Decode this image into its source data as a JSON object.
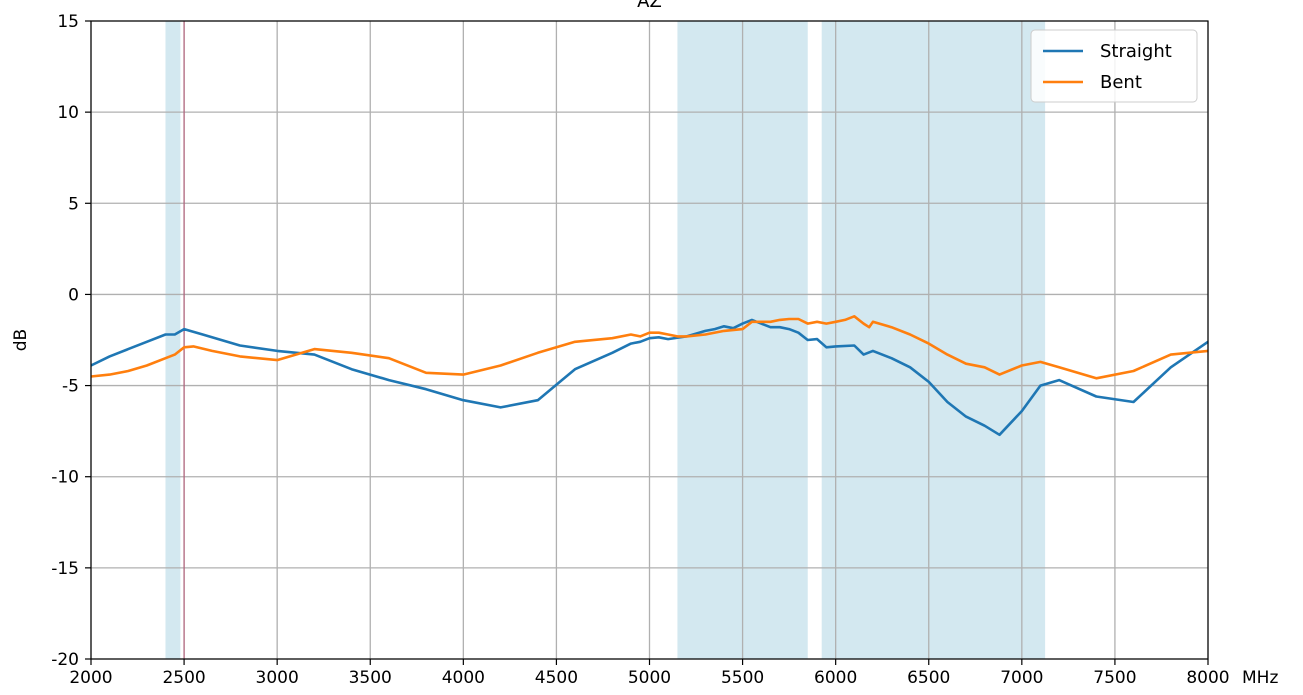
{
  "chart_data": {
    "type": "line",
    "title": "AZ",
    "xlabel": "",
    "ylabel": "dB",
    "x_unit": "MHz",
    "xlim": [
      2000,
      8000
    ],
    "ylim": [
      -20,
      15
    ],
    "xticks": [
      2000,
      2500,
      3000,
      3500,
      4000,
      4500,
      5000,
      5500,
      6000,
      6500,
      7000,
      7500,
      8000
    ],
    "yticks": [
      15,
      10,
      5,
      0,
      -5,
      -10,
      -15,
      -20
    ],
    "grid": true,
    "legend_position": "top-right",
    "shaded_bands": [
      [
        2400,
        2480
      ],
      [
        5150,
        5850
      ],
      [
        5925,
        7125
      ]
    ],
    "vertical_marker": 2500,
    "colors": {
      "Straight": "#1f77b4",
      "Bent": "#ff7f0e",
      "band": "#d3e8f0",
      "marker": "#b05070"
    },
    "series": [
      {
        "name": "Straight",
        "color": "#1f77b4",
        "x": [
          2000,
          2100,
          2200,
          2300,
          2400,
          2450,
          2500,
          2600,
          2800,
          3000,
          3200,
          3400,
          3600,
          3800,
          4000,
          4200,
          4400,
          4600,
          4800,
          4900,
          4950,
          5000,
          5050,
          5100,
          5200,
          5300,
          5350,
          5400,
          5450,
          5500,
          5550,
          5600,
          5650,
          5700,
          5750,
          5800,
          5850,
          5900,
          5950,
          6000,
          6100,
          6150,
          6200,
          6300,
          6400,
          6500,
          6600,
          6700,
          6800,
          6880,
          7000,
          7100,
          7200,
          7400,
          7600,
          7800,
          8000
        ],
        "y": [
          -3.9,
          -3.4,
          -3.0,
          -2.6,
          -2.2,
          -2.2,
          -1.9,
          -2.2,
          -2.8,
          -3.1,
          -3.3,
          -4.1,
          -4.7,
          -5.2,
          -5.8,
          -6.2,
          -5.8,
          -4.1,
          -3.2,
          -2.7,
          -2.6,
          -2.4,
          -2.35,
          -2.45,
          -2.3,
          -2.0,
          -1.9,
          -1.75,
          -1.85,
          -1.6,
          -1.4,
          -1.6,
          -1.8,
          -1.8,
          -1.9,
          -2.1,
          -2.5,
          -2.45,
          -2.9,
          -2.85,
          -2.8,
          -3.3,
          -3.1,
          -3.5,
          -4.0,
          -4.8,
          -5.9,
          -6.7,
          -7.2,
          -7.7,
          -6.4,
          -5.0,
          -4.7,
          -5.6,
          -5.9,
          -4.0,
          -2.6
        ]
      },
      {
        "name": "Bent",
        "color": "#ff7f0e",
        "x": [
          2000,
          2100,
          2200,
          2300,
          2400,
          2450,
          2500,
          2550,
          2650,
          2800,
          3000,
          3200,
          3400,
          3600,
          3800,
          4000,
          4200,
          4400,
          4600,
          4800,
          4900,
          4950,
          5000,
          5050,
          5100,
          5150,
          5200,
          5300,
          5400,
          5500,
          5550,
          5600,
          5650,
          5700,
          5750,
          5800,
          5850,
          5900,
          5950,
          6000,
          6050,
          6100,
          6150,
          6180,
          6200,
          6300,
          6400,
          6500,
          6600,
          6700,
          6800,
          6880,
          7000,
          7100,
          7200,
          7400,
          7600,
          7800,
          8000
        ],
        "y": [
          -4.5,
          -4.4,
          -4.2,
          -3.9,
          -3.5,
          -3.3,
          -2.9,
          -2.85,
          -3.1,
          -3.4,
          -3.6,
          -3.0,
          -3.2,
          -3.5,
          -4.3,
          -4.4,
          -3.9,
          -3.2,
          -2.6,
          -2.4,
          -2.2,
          -2.3,
          -2.1,
          -2.1,
          -2.2,
          -2.3,
          -2.3,
          -2.2,
          -2.0,
          -1.9,
          -1.5,
          -1.5,
          -1.5,
          -1.4,
          -1.35,
          -1.35,
          -1.6,
          -1.5,
          -1.6,
          -1.5,
          -1.4,
          -1.2,
          -1.6,
          -1.8,
          -1.5,
          -1.8,
          -2.2,
          -2.7,
          -3.3,
          -3.8,
          -4.0,
          -4.4,
          -3.9,
          -3.7,
          -4.0,
          -4.6,
          -4.2,
          -3.3,
          -3.1
        ]
      }
    ]
  }
}
